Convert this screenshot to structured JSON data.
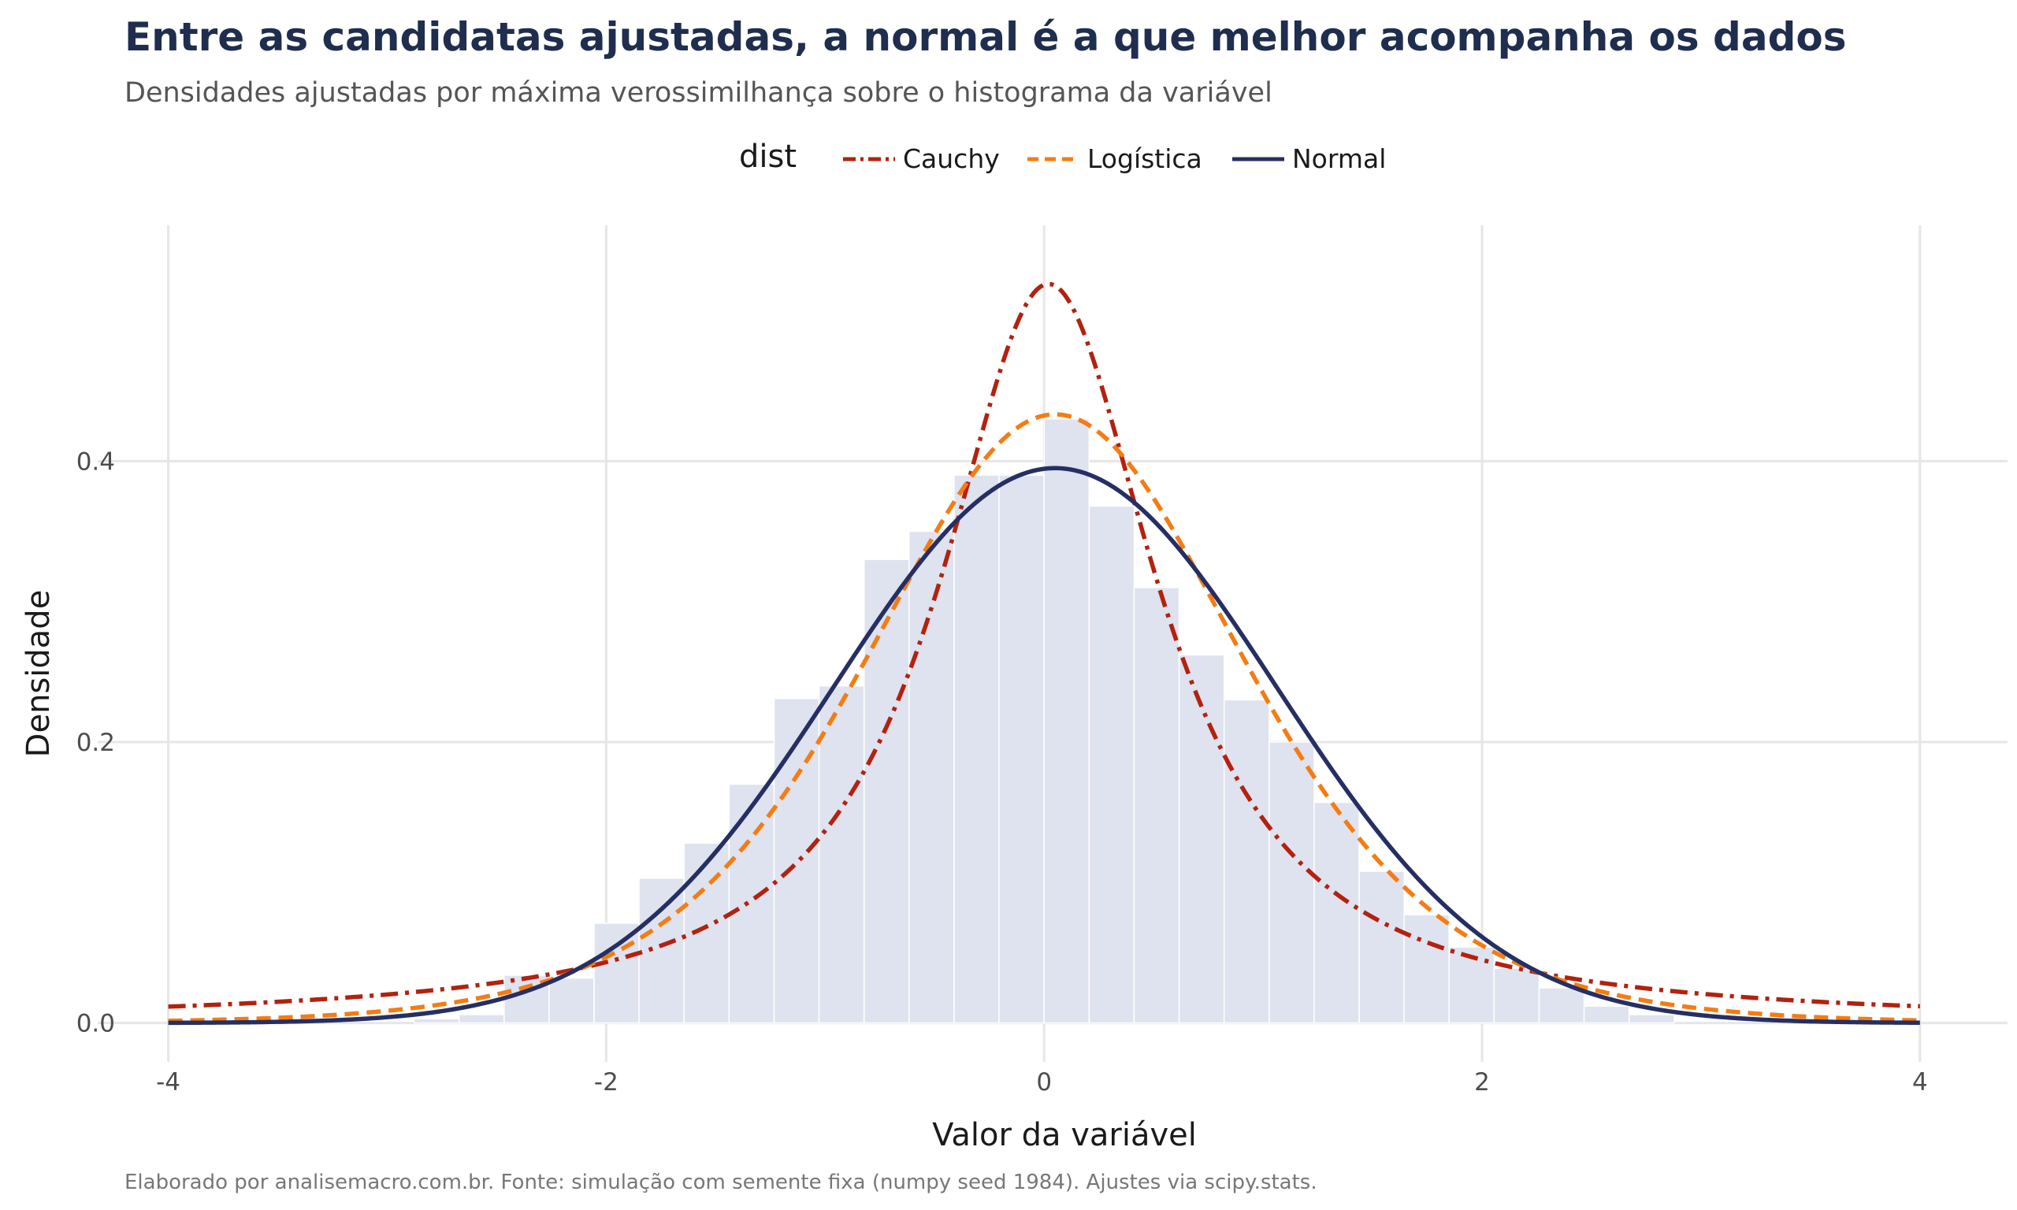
{
  "chart_data": {
    "type": "line",
    "title": "Entre as candidatas ajustadas, a normal é a que melhor acompanha os dados",
    "subtitle": "Densidades ajustadas por máxima verossimilhança sobre o histograma da variável",
    "caption": "Elaborado por analisemacro.com.br. Fonte: simulação com semente fixa (numpy seed 1984). Ajustes via scipy.stats.",
    "xlabel": "Valor da variável",
    "ylabel": "Densidade",
    "xlim": [
      -4.2,
      4.4
    ],
    "ylim": [
      -0.012,
      0.56
    ],
    "x_ticks": [
      -4,
      -2,
      0,
      2,
      4
    ],
    "x_tick_labels": [
      "-4",
      "-2",
      "0",
      "2",
      "4"
    ],
    "y_ticks": [
      0.0,
      0.2,
      0.4
    ],
    "y_tick_labels": [
      "0.0",
      "0.2",
      "0.4"
    ],
    "grid": true,
    "legend": {
      "title": "dist",
      "position": "top",
      "entries": [
        "Cauchy",
        "Logística",
        "Normal"
      ]
    },
    "histogram": {
      "bin_width": 0.2054,
      "bin_starts": [
        -2.877,
        -2.672,
        -2.466,
        -2.261,
        -2.055,
        -1.85,
        -1.644,
        -1.439,
        -1.233,
        -1.028,
        -0.822,
        -0.617,
        -0.411,
        -0.206,
        0.0,
        0.206,
        0.411,
        0.617,
        0.822,
        1.028,
        1.233,
        1.439,
        1.644,
        1.85,
        2.055,
        2.261,
        2.466,
        2.672
      ],
      "density": [
        0.003,
        0.006,
        0.034,
        0.032,
        0.071,
        0.103,
        0.128,
        0.17,
        0.231,
        0.24,
        0.33,
        0.35,
        0.39,
        0.39,
        0.43,
        0.368,
        0.31,
        0.262,
        0.23,
        0.2,
        0.157,
        0.108,
        0.077,
        0.054,
        0.039,
        0.025,
        0.012,
        0.006
      ],
      "color": "#dfe2ef"
    },
    "series": [
      {
        "name": "Cauchy",
        "dist": "cauchy",
        "loc": 0.02,
        "scale": 0.605,
        "color": "#b2220f",
        "dash": "dashdot"
      },
      {
        "name": "Logística",
        "dist": "logistic",
        "loc": 0.05,
        "scale": 0.577,
        "color": "#f57c12",
        "dash": "dashed"
      },
      {
        "name": "Normal",
        "dist": "normal",
        "loc": 0.05,
        "scale": 1.01,
        "color": "#262f63",
        "dash": "solid"
      }
    ]
  }
}
